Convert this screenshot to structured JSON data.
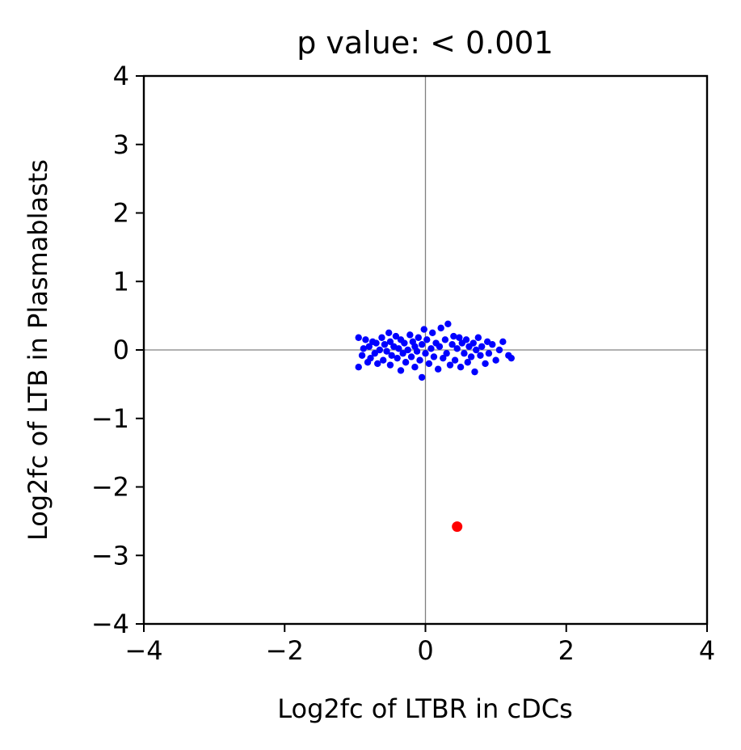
{
  "chart_data": {
    "type": "scatter",
    "title": "p value: < 0.001",
    "xlabel": "Log2fc of LTBR in cDCs",
    "ylabel": "Log2fc of LTB in Plasmablasts",
    "xlim": [
      -4,
      4
    ],
    "ylim": [
      -4,
      4
    ],
    "xticks": [
      -4,
      -2,
      0,
      2,
      4
    ],
    "yticks": [
      -4,
      -3,
      -2,
      -1,
      0,
      1,
      2,
      3,
      4
    ],
    "reference_lines": {
      "x": 0,
      "y": 0,
      "color": "#808080"
    },
    "grid": false,
    "series": [
      {
        "color": "#0000ff",
        "marker_size": "small",
        "points": [
          [
            -0.95,
            0.18
          ],
          [
            -0.95,
            -0.25
          ],
          [
            -0.9,
            -0.08
          ],
          [
            -0.88,
            0.02
          ],
          [
            -0.85,
            0.15
          ],
          [
            -0.82,
            -0.18
          ],
          [
            -0.8,
            0.05
          ],
          [
            -0.78,
            -0.12
          ],
          [
            -0.75,
            0.12
          ],
          [
            -0.72,
            -0.05
          ],
          [
            -0.7,
            0.1
          ],
          [
            -0.68,
            -0.2
          ],
          [
            -0.65,
            0.0
          ],
          [
            -0.62,
            0.18
          ],
          [
            -0.6,
            -0.15
          ],
          [
            -0.58,
            0.08
          ],
          [
            -0.55,
            -0.02
          ],
          [
            -0.52,
            0.25
          ],
          [
            -0.5,
            -0.22
          ],
          [
            -0.5,
            0.12
          ],
          [
            -0.48,
            -0.08
          ],
          [
            -0.45,
            0.05
          ],
          [
            -0.42,
            0.2
          ],
          [
            -0.4,
            -0.12
          ],
          [
            -0.38,
            0.02
          ],
          [
            -0.35,
            -0.3
          ],
          [
            -0.35,
            0.15
          ],
          [
            -0.32,
            -0.05
          ],
          [
            -0.3,
            0.1
          ],
          [
            -0.28,
            -0.18
          ],
          [
            -0.25,
            0.0
          ],
          [
            -0.22,
            0.22
          ],
          [
            -0.2,
            -0.1
          ],
          [
            -0.18,
            0.12
          ],
          [
            -0.15,
            -0.25
          ],
          [
            -0.15,
            0.05
          ],
          [
            -0.12,
            -0.02
          ],
          [
            -0.1,
            0.18
          ],
          [
            -0.08,
            -0.15
          ],
          [
            -0.05,
            0.08
          ],
          [
            -0.05,
            -0.4
          ],
          [
            -0.02,
            0.3
          ],
          [
            0.0,
            -0.05
          ],
          [
            0.02,
            0.15
          ],
          [
            0.05,
            -0.2
          ],
          [
            0.08,
            0.02
          ],
          [
            0.1,
            0.25
          ],
          [
            0.12,
            -0.1
          ],
          [
            0.15,
            0.1
          ],
          [
            0.18,
            -0.28
          ],
          [
            0.2,
            0.05
          ],
          [
            0.22,
            0.32
          ],
          [
            0.25,
            -0.12
          ],
          [
            0.28,
            0.15
          ],
          [
            0.3,
            -0.05
          ],
          [
            0.32,
            0.38
          ],
          [
            0.35,
            -0.22
          ],
          [
            0.38,
            0.08
          ],
          [
            0.4,
            0.2
          ],
          [
            0.42,
            -0.15
          ],
          [
            0.45,
            0.02
          ],
          [
            0.48,
            0.18
          ],
          [
            0.5,
            -0.25
          ],
          [
            0.52,
            0.1
          ],
          [
            0.55,
            -0.05
          ],
          [
            0.58,
            0.15
          ],
          [
            0.6,
            -0.18
          ],
          [
            0.62,
            0.05
          ],
          [
            0.65,
            -0.1
          ],
          [
            0.68,
            0.1
          ],
          [
            0.7,
            -0.32
          ],
          [
            0.72,
            0.0
          ],
          [
            0.75,
            0.18
          ],
          [
            0.78,
            -0.08
          ],
          [
            0.8,
            0.05
          ],
          [
            0.85,
            -0.2
          ],
          [
            0.88,
            0.12
          ],
          [
            0.9,
            -0.05
          ],
          [
            0.95,
            0.08
          ],
          [
            1.0,
            -0.15
          ],
          [
            1.05,
            0.0
          ],
          [
            1.1,
            0.12
          ],
          [
            1.18,
            -0.08
          ],
          [
            1.22,
            -0.12
          ]
        ]
      },
      {
        "color": "#ff0000",
        "marker_size": "large",
        "points": [
          [
            0.45,
            -2.58
          ]
        ]
      }
    ]
  }
}
